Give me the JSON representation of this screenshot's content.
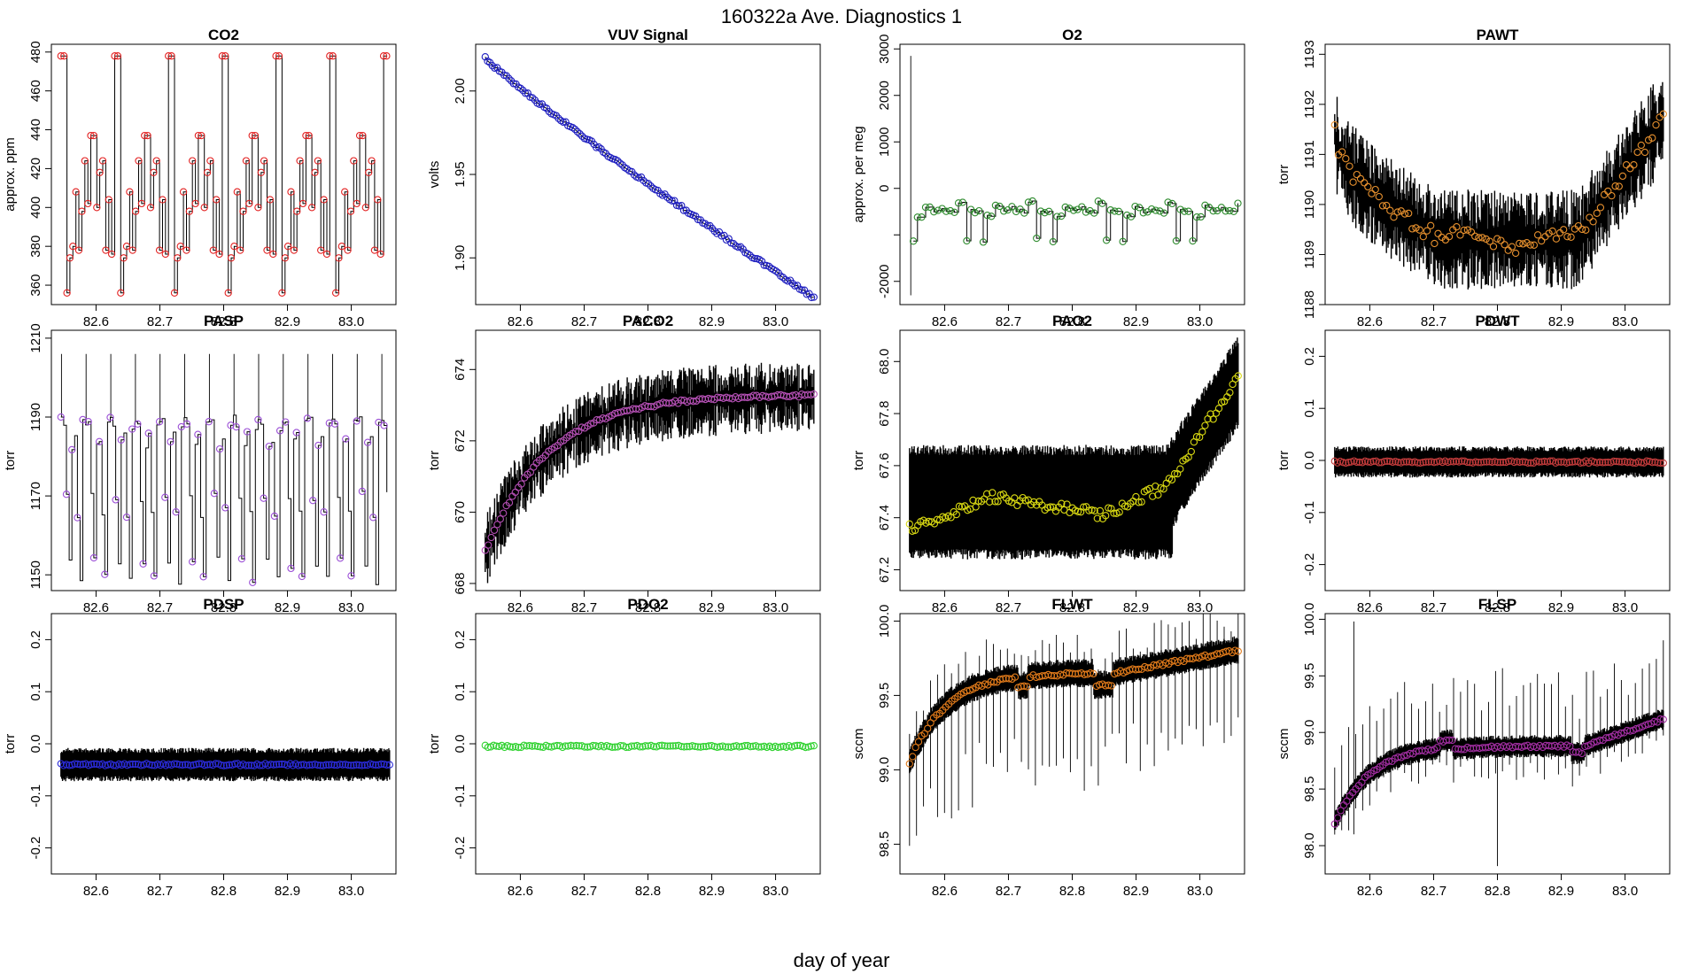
{
  "figure": {
    "title": "160322a   Ave. Diagnostics 1",
    "xlabel": "day of year"
  },
  "chart_data": [
    {
      "name": "CO2",
      "title": "CO2",
      "ylabel": "approx. ppm",
      "type": "line",
      "xlim": [
        82.53,
        83.07
      ],
      "ylim": [
        350,
        484
      ],
      "xticks": [
        82.6,
        82.7,
        82.8,
        82.9,
        83.0
      ],
      "xtick_labels": [
        "82.6",
        "82.7",
        "82.8",
        "82.9",
        "83.0"
      ],
      "yticks": [
        360,
        380,
        400,
        420,
        440,
        460,
        480
      ],
      "ytick_labels": [
        "360",
        "380",
        "400",
        "420",
        "440",
        "460",
        "480"
      ],
      "marker_color": "#e32222",
      "pattern": "co2"
    },
    {
      "name": "VUV Signal",
      "title": "VUV Signal",
      "ylabel": "volts",
      "type": "line",
      "xlim": [
        82.53,
        83.07
      ],
      "ylim": [
        1.872,
        2.028
      ],
      "xticks": [
        82.6,
        82.7,
        82.8,
        82.9,
        83.0
      ],
      "xtick_labels": [
        "82.6",
        "82.7",
        "82.8",
        "82.9",
        "83.0"
      ],
      "yticks": [
        1.9,
        1.95,
        2.0
      ],
      "ytick_labels": [
        "1.90",
        "1.95",
        "2.00"
      ],
      "marker_color": "#1f1fbf",
      "pattern": "vuv",
      "start": 2.02,
      "end": 1.876
    },
    {
      "name": "O2",
      "title": "O2",
      "ylabel": "approx. per meg",
      "type": "line",
      "xlim": [
        82.53,
        83.07
      ],
      "ylim": [
        -2500,
        3100
      ],
      "xticks": [
        82.6,
        82.7,
        82.8,
        82.9,
        83.0
      ],
      "xtick_labels": [
        "82.6",
        "82.7",
        "82.8",
        "82.9",
        "83.0"
      ],
      "yticks": [
        -2000,
        -1000,
        0,
        1000,
        2000,
        3000
      ],
      "ytick_labels": [
        "-2000",
        "",
        "0",
        "1000",
        "2000",
        "3000"
      ],
      "marker_color": "#2e8b2e",
      "pattern": "o2"
    },
    {
      "name": "PAWT",
      "title": "PAWT",
      "ylabel": "torr",
      "type": "line",
      "xlim": [
        82.53,
        83.07
      ],
      "ylim": [
        1188,
        1193.2
      ],
      "xticks": [
        82.6,
        82.7,
        82.8,
        82.9,
        83.0
      ],
      "xtick_labels": [
        "82.6",
        "82.7",
        "82.8",
        "82.9",
        "83.0"
      ],
      "yticks": [
        1188,
        1189,
        1190,
        1191,
        1192,
        1193
      ],
      "ytick_labels": [
        "1188",
        "1189",
        "1190",
        "1191",
        "1192",
        "1193"
      ],
      "marker_color": "#e6902e",
      "pattern": "pawt"
    },
    {
      "name": "PASP",
      "title": "PASP",
      "ylabel": "torr",
      "type": "line",
      "xlim": [
        82.53,
        83.07
      ],
      "ylim": [
        1146,
        1212
      ],
      "xticks": [
        82.6,
        82.7,
        82.8,
        82.9,
        83.0
      ],
      "xtick_labels": [
        "82.6",
        "82.7",
        "82.8",
        "82.9",
        "83.0"
      ],
      "yticks": [
        1150,
        1170,
        1190,
        1210
      ],
      "ytick_labels": [
        "1150",
        "1170",
        "1190",
        "1210"
      ],
      "marker_color": "#9b4fd6",
      "pattern": "pasp"
    },
    {
      "name": "PACO2",
      "title": "PACO2",
      "ylabel": "torr",
      "type": "line",
      "xlim": [
        82.53,
        83.07
      ],
      "ylim": [
        667.8,
        675.1
      ],
      "xticks": [
        82.6,
        82.7,
        82.8,
        82.9,
        83.0
      ],
      "xtick_labels": [
        "82.6",
        "82.7",
        "82.8",
        "82.9",
        "83.0"
      ],
      "yticks": [
        668,
        670,
        672,
        674
      ],
      "ytick_labels": [
        "668",
        "670",
        "672",
        "674"
      ],
      "marker_color": "#b550b5",
      "pattern": "paco2"
    },
    {
      "name": "PAO2",
      "title": "PAO2",
      "ylabel": "torr",
      "type": "line",
      "xlim": [
        82.53,
        83.07
      ],
      "ylim": [
        67.12,
        68.12
      ],
      "xticks": [
        82.6,
        82.7,
        82.8,
        82.9,
        83.0
      ],
      "xtick_labels": [
        "82.6",
        "82.7",
        "82.8",
        "82.9",
        "83.0"
      ],
      "yticks": [
        67.2,
        67.4,
        67.6,
        67.8,
        68.0
      ],
      "ytick_labels": [
        "67.2",
        "67.4",
        "67.6",
        "67.8",
        "68.0"
      ],
      "marker_color": "#d9d912",
      "pattern": "pao2"
    },
    {
      "name": "PDWT",
      "title": "PDWT",
      "ylabel": "torr",
      "type": "line",
      "xlim": [
        82.53,
        83.07
      ],
      "ylim": [
        -0.25,
        0.25
      ],
      "xticks": [
        82.6,
        82.7,
        82.8,
        82.9,
        83.0
      ],
      "xtick_labels": [
        "82.6",
        "82.7",
        "82.8",
        "82.9",
        "83.0"
      ],
      "yticks": [
        -0.2,
        -0.1,
        0.0,
        0.1,
        0.2
      ],
      "ytick_labels": [
        "-0.2",
        "-0.1",
        "0.0",
        "0.1",
        "0.2"
      ],
      "marker_color": "#c23b3b",
      "pattern": "pdwt"
    },
    {
      "name": "PDSP",
      "title": "PDSP",
      "ylabel": "torr",
      "type": "line",
      "xlim": [
        82.53,
        83.07
      ],
      "ylim": [
        -0.25,
        0.25
      ],
      "xticks": [
        82.6,
        82.7,
        82.8,
        82.9,
        83.0
      ],
      "xtick_labels": [
        "82.6",
        "82.7",
        "82.8",
        "82.9",
        "83.0"
      ],
      "yticks": [
        -0.2,
        -0.1,
        0.0,
        0.1,
        0.2
      ],
      "ytick_labels": [
        "-0.2",
        "-0.1",
        "0.0",
        "0.1",
        "0.2"
      ],
      "marker_color": "#2b2bd9",
      "pattern": "pdsp"
    },
    {
      "name": "PDO2",
      "title": "PDO2",
      "ylabel": "torr",
      "type": "line",
      "xlim": [
        82.53,
        83.07
      ],
      "ylim": [
        -0.25,
        0.25
      ],
      "xticks": [
        82.6,
        82.7,
        82.8,
        82.9,
        83.0
      ],
      "xtick_labels": [
        "82.6",
        "82.7",
        "82.8",
        "82.9",
        "83.0"
      ],
      "yticks": [
        -0.2,
        -0.1,
        0.0,
        0.1,
        0.2
      ],
      "ytick_labels": [
        "-0.2",
        "-0.1",
        "0.0",
        "0.1",
        "0.2"
      ],
      "marker_color": "#2fd12f",
      "pattern": "pdo2"
    },
    {
      "name": "FLWT",
      "title": "FLWT",
      "ylabel": "sccm",
      "type": "line",
      "xlim": [
        82.53,
        83.07
      ],
      "ylim": [
        98.3,
        100.05
      ],
      "xticks": [
        82.6,
        82.7,
        82.8,
        82.9,
        83.0
      ],
      "xtick_labels": [
        "82.6",
        "82.7",
        "82.8",
        "82.9",
        "83.0"
      ],
      "yticks": [
        98.5,
        99.0,
        99.5,
        100.0
      ],
      "ytick_labels": [
        "98.5",
        "99.0",
        "99.5",
        "100.0"
      ],
      "marker_color": "#e07a1a",
      "pattern": "flwt"
    },
    {
      "name": "FLSP",
      "title": "FLSP",
      "ylabel": "sccm",
      "type": "line",
      "xlim": [
        82.53,
        83.07
      ],
      "ylim": [
        97.75,
        100.05
      ],
      "xticks": [
        82.6,
        82.7,
        82.8,
        82.9,
        83.0
      ],
      "xtick_labels": [
        "82.6",
        "82.7",
        "82.8",
        "82.9",
        "83.0"
      ],
      "yticks": [
        98.0,
        98.5,
        99.0,
        99.5,
        100.0
      ],
      "ytick_labels": [
        "98.0",
        "98.5",
        "99.0",
        "99.5",
        "100.0"
      ],
      "marker_color": "#a12ea1",
      "pattern": "flsp"
    }
  ]
}
